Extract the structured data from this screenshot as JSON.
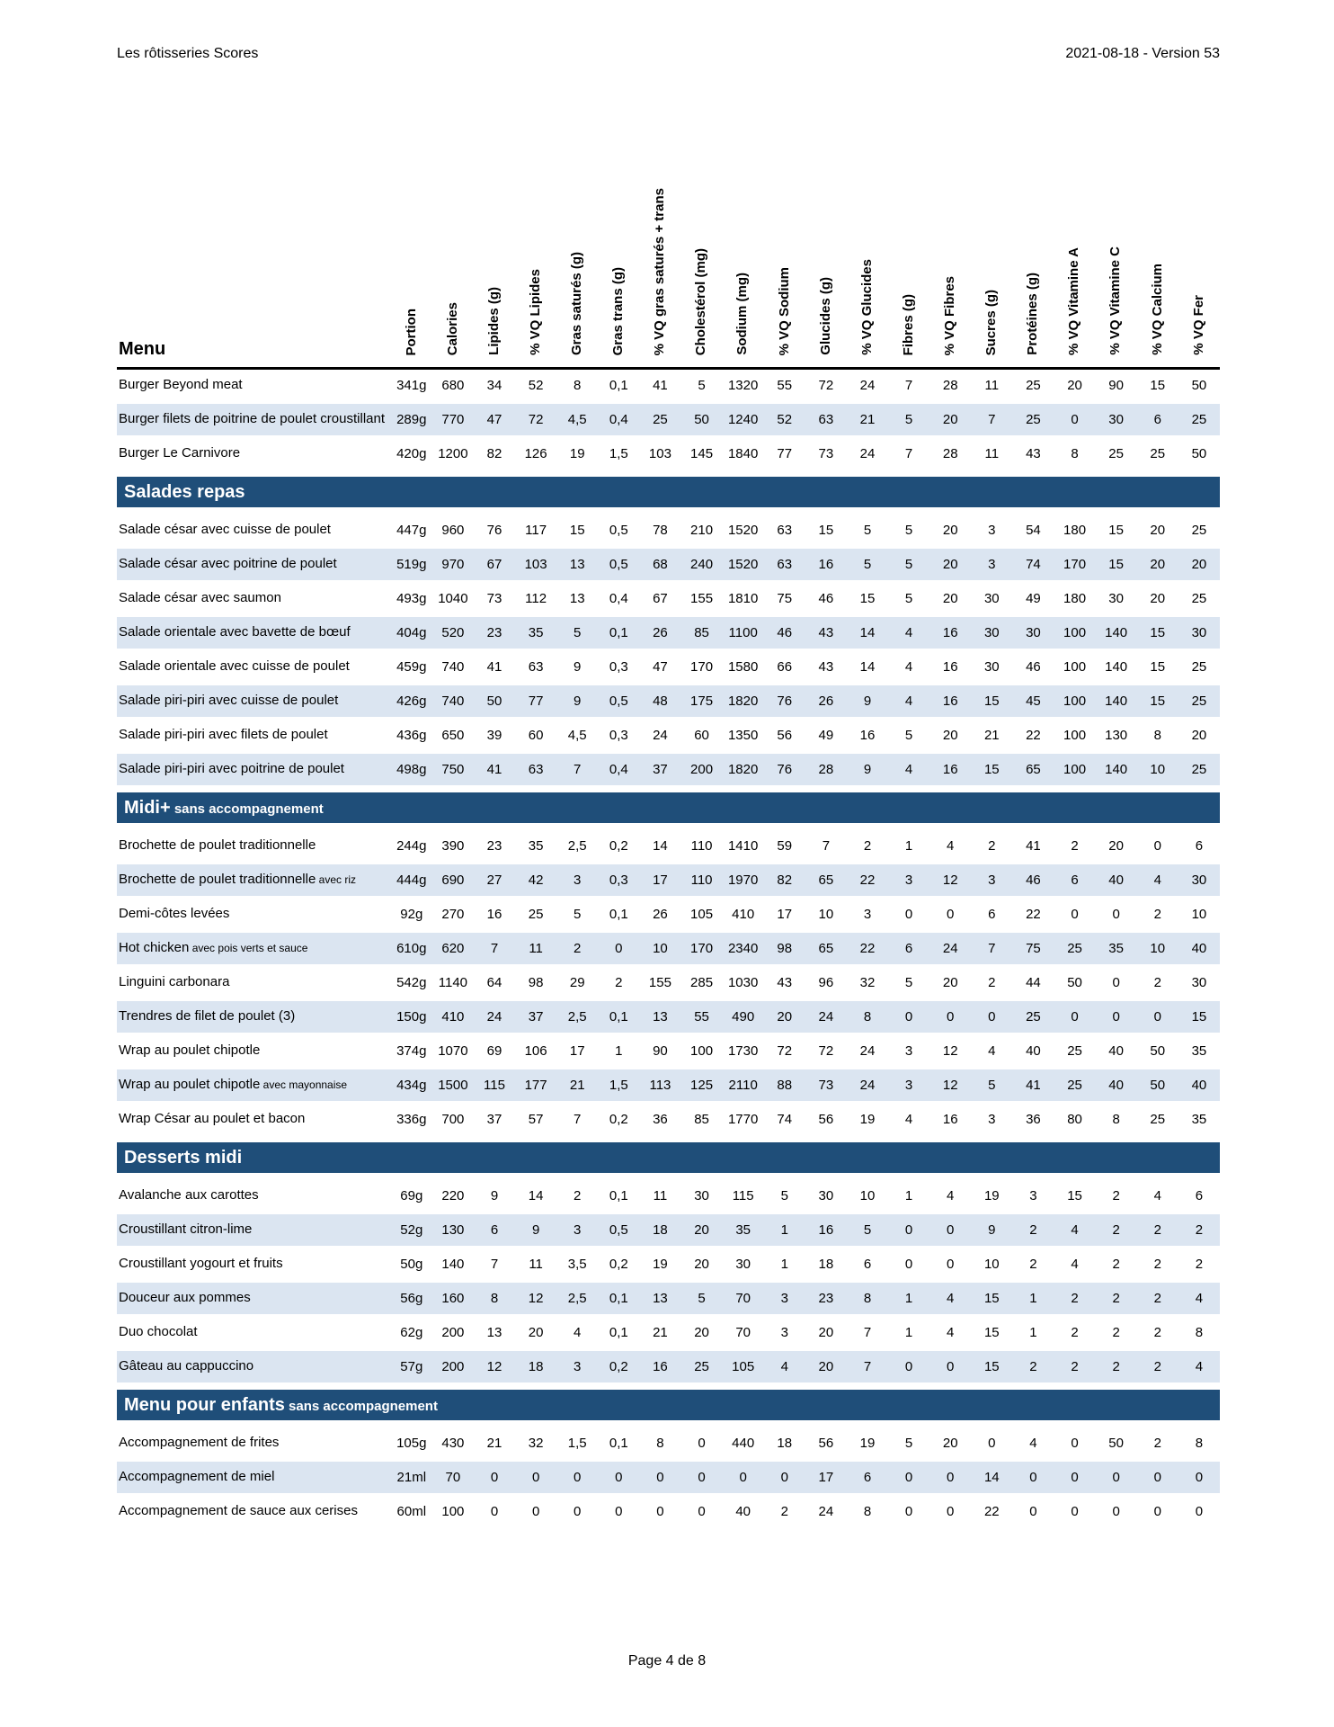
{
  "page": {
    "header_left": "Les rôtisseries Scores",
    "header_right": "2021-08-18 - Version 53",
    "footer": "Page 4 de 8"
  },
  "colors": {
    "section_header_bg": "#1f4e79",
    "alt_row_bg": "#dbe5f1",
    "text": "#000000"
  },
  "table": {
    "menu_header": "Menu",
    "columns": [
      "Portion",
      "Calories",
      "Lipides (g)",
      "% VQ Lipides",
      "Gras saturés (g)",
      "Gras trans (g)",
      "% VQ gras saturés + trans",
      "Cholestérol (mg)",
      "Sodium (mg)",
      "% VQ Sodium",
      "Glucides (g)",
      "% VQ Glucides",
      "Fibres (g)",
      "% VQ Fibres",
      "Sucres (g)",
      "Protéines (g)",
      "% VQ Vitamine A",
      "% VQ Vitamine C",
      "% VQ Calcium",
      "% VQ Fer"
    ],
    "sections": [
      {
        "title": "",
        "subtitle": "",
        "rows": [
          {
            "name": "Burger Beyond meat",
            "small": "",
            "values": [
              "341g",
              "680",
              "34",
              "52",
              "8",
              "0,1",
              "41",
              "5",
              "1320",
              "55",
              "72",
              "24",
              "7",
              "28",
              "11",
              "25",
              "20",
              "90",
              "15",
              "50"
            ]
          },
          {
            "name": "Burger filets de poitrine de poulet croustillant",
            "small": "",
            "values": [
              "289g",
              "770",
              "47",
              "72",
              "4,5",
              "0,4",
              "25",
              "50",
              "1240",
              "52",
              "63",
              "21",
              "5",
              "20",
              "7",
              "25",
              "0",
              "30",
              "6",
              "25"
            ]
          },
          {
            "name": "Burger Le Carnivore",
            "small": "",
            "values": [
              "420g",
              "1200",
              "82",
              "126",
              "19",
              "1,5",
              "103",
              "145",
              "1840",
              "77",
              "73",
              "24",
              "7",
              "28",
              "11",
              "43",
              "8",
              "25",
              "25",
              "50"
            ]
          }
        ]
      },
      {
        "title": "Salades repas",
        "subtitle": "",
        "rows": [
          {
            "name": "Salade césar avec cuisse de poulet",
            "small": "",
            "values": [
              "447g",
              "960",
              "76",
              "117",
              "15",
              "0,5",
              "78",
              "210",
              "1520",
              "63",
              "15",
              "5",
              "5",
              "20",
              "3",
              "54",
              "180",
              "15",
              "20",
              "25"
            ]
          },
          {
            "name": "Salade césar avec poitrine de poulet",
            "small": "",
            "values": [
              "519g",
              "970",
              "67",
              "103",
              "13",
              "0,5",
              "68",
              "240",
              "1520",
              "63",
              "16",
              "5",
              "5",
              "20",
              "3",
              "74",
              "170",
              "15",
              "20",
              "20"
            ]
          },
          {
            "name": "Salade césar avec saumon",
            "small": "",
            "values": [
              "493g",
              "1040",
              "73",
              "112",
              "13",
              "0,4",
              "67",
              "155",
              "1810",
              "75",
              "46",
              "15",
              "5",
              "20",
              "30",
              "49",
              "180",
              "30",
              "20",
              "25"
            ]
          },
          {
            "name": "Salade orientale avec bavette de bœuf",
            "small": "",
            "values": [
              "404g",
              "520",
              "23",
              "35",
              "5",
              "0,1",
              "26",
              "85",
              "1100",
              "46",
              "43",
              "14",
              "4",
              "16",
              "30",
              "30",
              "100",
              "140",
              "15",
              "30"
            ]
          },
          {
            "name": "Salade orientale avec cuisse de poulet",
            "small": "",
            "values": [
              "459g",
              "740",
              "41",
              "63",
              "9",
              "0,3",
              "47",
              "170",
              "1580",
              "66",
              "43",
              "14",
              "4",
              "16",
              "30",
              "46",
              "100",
              "140",
              "15",
              "25"
            ]
          },
          {
            "name": "Salade piri-piri avec cuisse de poulet",
            "small": "",
            "values": [
              "426g",
              "740",
              "50",
              "77",
              "9",
              "0,5",
              "48",
              "175",
              "1820",
              "76",
              "26",
              "9",
              "4",
              "16",
              "15",
              "45",
              "100",
              "140",
              "15",
              "25"
            ]
          },
          {
            "name": "Salade piri-piri avec filets de poulet",
            "small": "",
            "values": [
              "436g",
              "650",
              "39",
              "60",
              "4,5",
              "0,3",
              "24",
              "60",
              "1350",
              "56",
              "49",
              "16",
              "5",
              "20",
              "21",
              "22",
              "100",
              "130",
              "8",
              "20"
            ]
          },
          {
            "name": "Salade piri-piri avec poitrine de poulet",
            "small": "",
            "values": [
              "498g",
              "750",
              "41",
              "63",
              "7",
              "0,4",
              "37",
              "200",
              "1820",
              "76",
              "28",
              "9",
              "4",
              "16",
              "15",
              "65",
              "100",
              "140",
              "10",
              "25"
            ]
          }
        ]
      },
      {
        "title": "Midi+",
        "subtitle": "sans accompagnement",
        "rows": [
          {
            "name": "Brochette de poulet traditionnelle",
            "small": "",
            "values": [
              "244g",
              "390",
              "23",
              "35",
              "2,5",
              "0,2",
              "14",
              "110",
              "1410",
              "59",
              "7",
              "2",
              "1",
              "4",
              "2",
              "41",
              "2",
              "20",
              "0",
              "6"
            ]
          },
          {
            "name": "Brochette de poulet traditionnelle",
            "small": "avec riz",
            "values": [
              "444g",
              "690",
              "27",
              "42",
              "3",
              "0,3",
              "17",
              "110",
              "1970",
              "82",
              "65",
              "22",
              "3",
              "12",
              "3",
              "46",
              "6",
              "40",
              "4",
              "30"
            ]
          },
          {
            "name": "Demi-côtes levées",
            "small": "",
            "values": [
              "92g",
              "270",
              "16",
              "25",
              "5",
              "0,1",
              "26",
              "105",
              "410",
              "17",
              "10",
              "3",
              "0",
              "0",
              "6",
              "22",
              "0",
              "0",
              "2",
              "10"
            ]
          },
          {
            "name": "Hot chicken",
            "small": "avec pois verts et sauce",
            "values": [
              "610g",
              "620",
              "7",
              "11",
              "2",
              "0",
              "10",
              "170",
              "2340",
              "98",
              "65",
              "22",
              "6",
              "24",
              "7",
              "75",
              "25",
              "35",
              "10",
              "40"
            ]
          },
          {
            "name": "Linguini carbonara",
            "small": "",
            "values": [
              "542g",
              "1140",
              "64",
              "98",
              "29",
              "2",
              "155",
              "285",
              "1030",
              "43",
              "96",
              "32",
              "5",
              "20",
              "2",
              "44",
              "50",
              "0",
              "2",
              "30"
            ]
          },
          {
            "name": "Trendres de filet de poulet (3)",
            "small": "",
            "values": [
              "150g",
              "410",
              "24",
              "37",
              "2,5",
              "0,1",
              "13",
              "55",
              "490",
              "20",
              "24",
              "8",
              "0",
              "0",
              "0",
              "25",
              "0",
              "0",
              "0",
              "15"
            ]
          },
          {
            "name": "Wrap au poulet chipotle",
            "small": "",
            "values": [
              "374g",
              "1070",
              "69",
              "106",
              "17",
              "1",
              "90",
              "100",
              "1730",
              "72",
              "72",
              "24",
              "3",
              "12",
              "4",
              "40",
              "25",
              "40",
              "50",
              "35"
            ]
          },
          {
            "name": "Wrap au poulet chipotle",
            "small": "avec mayonnaise",
            "values": [
              "434g",
              "1500",
              "115",
              "177",
              "21",
              "1,5",
              "113",
              "125",
              "2110",
              "88",
              "73",
              "24",
              "3",
              "12",
              "5",
              "41",
              "25",
              "40",
              "50",
              "40"
            ]
          },
          {
            "name": "Wrap César au poulet et bacon",
            "small": "",
            "values": [
              "336g",
              "700",
              "37",
              "57",
              "7",
              "0,2",
              "36",
              "85",
              "1770",
              "74",
              "56",
              "19",
              "4",
              "16",
              "3",
              "36",
              "80",
              "8",
              "25",
              "35"
            ]
          }
        ]
      },
      {
        "title": "Desserts midi",
        "subtitle": "",
        "rows": [
          {
            "name": "Avalanche aux carottes",
            "small": "",
            "values": [
              "69g",
              "220",
              "9",
              "14",
              "2",
              "0,1",
              "11",
              "30",
              "115",
              "5",
              "30",
              "10",
              "1",
              "4",
              "19",
              "3",
              "15",
              "2",
              "4",
              "6"
            ]
          },
          {
            "name": "Croustillant citron-lime",
            "small": "",
            "values": [
              "52g",
              "130",
              "6",
              "9",
              "3",
              "0,5",
              "18",
              "20",
              "35",
              "1",
              "16",
              "5",
              "0",
              "0",
              "9",
              "2",
              "4",
              "2",
              "2",
              "2"
            ]
          },
          {
            "name": "Croustillant yogourt et fruits",
            "small": "",
            "values": [
              "50g",
              "140",
              "7",
              "11",
              "3,5",
              "0,2",
              "19",
              "20",
              "30",
              "1",
              "18",
              "6",
              "0",
              "0",
              "10",
              "2",
              "4",
              "2",
              "2",
              "2"
            ]
          },
          {
            "name": "Douceur aux pommes",
            "small": "",
            "values": [
              "56g",
              "160",
              "8",
              "12",
              "2,5",
              "0,1",
              "13",
              "5",
              "70",
              "3",
              "23",
              "8",
              "1",
              "4",
              "15",
              "1",
              "2",
              "2",
              "2",
              "4"
            ]
          },
          {
            "name": "Duo chocolat",
            "small": "",
            "values": [
              "62g",
              "200",
              "13",
              "20",
              "4",
              "0,1",
              "21",
              "20",
              "70",
              "3",
              "20",
              "7",
              "1",
              "4",
              "15",
              "1",
              "2",
              "2",
              "2",
              "8"
            ]
          },
          {
            "name": "Gâteau au cappuccino",
            "small": "",
            "values": [
              "57g",
              "200",
              "12",
              "18",
              "3",
              "0,2",
              "16",
              "25",
              "105",
              "4",
              "20",
              "7",
              "0",
              "0",
              "15",
              "2",
              "2",
              "2",
              "2",
              "4"
            ]
          }
        ]
      },
      {
        "title": "Menu pour enfants",
        "subtitle": "sans accompagnement",
        "rows": [
          {
            "name": "Accompagnement de frites",
            "small": "",
            "values": [
              "105g",
              "430",
              "21",
              "32",
              "1,5",
              "0,1",
              "8",
              "0",
              "440",
              "18",
              "56",
              "19",
              "5",
              "20",
              "0",
              "4",
              "0",
              "50",
              "2",
              "8"
            ]
          },
          {
            "name": "Accompagnement de miel",
            "small": "",
            "values": [
              "21ml",
              "70",
              "0",
              "0",
              "0",
              "0",
              "0",
              "0",
              "0",
              "0",
              "17",
              "6",
              "0",
              "0",
              "14",
              "0",
              "0",
              "0",
              "0",
              "0"
            ]
          },
          {
            "name": "Accompagnement de sauce aux cerises",
            "small": "",
            "values": [
              "60ml",
              "100",
              "0",
              "0",
              "0",
              "0",
              "0",
              "0",
              "40",
              "2",
              "24",
              "8",
              "0",
              "0",
              "22",
              "0",
              "0",
              "0",
              "0",
              "0"
            ]
          }
        ]
      }
    ]
  }
}
